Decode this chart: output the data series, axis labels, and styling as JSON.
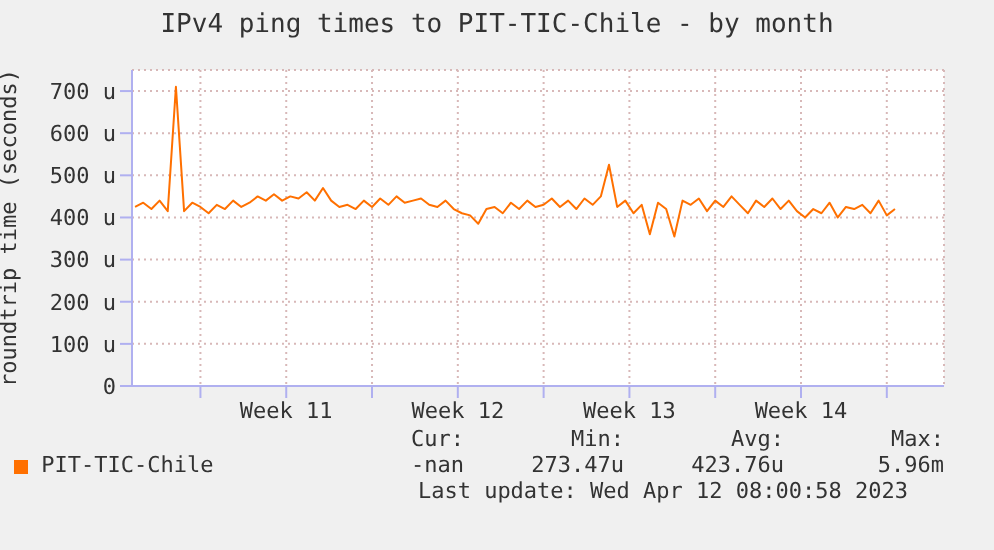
{
  "chart_data": {
    "type": "line",
    "title": "IPv4 ping times to PIT-TIC-Chile - by month",
    "ylabel": "roundtrip time (seconds)",
    "xlim": [
      "2023-03-10T05:00",
      "2023-04-12T08:00"
    ],
    "xticks": [
      {
        "value": "2023-03-13T00:00",
        "label": null
      },
      {
        "value": "2023-03-16T12:00",
        "label": "Week 11"
      },
      {
        "value": "2023-03-20T00:00",
        "label": null
      },
      {
        "value": "2023-03-23T12:00",
        "label": "Week 12"
      },
      {
        "value": "2023-03-27T00:00",
        "label": null
      },
      {
        "value": "2023-03-30T12:00",
        "label": "Week 13"
      },
      {
        "value": "2023-04-03T00:00",
        "label": null
      },
      {
        "value": "2023-04-06T12:00",
        "label": "Week 14"
      },
      {
        "value": "2023-04-10T00:00",
        "label": null
      }
    ],
    "ylim": [
      0,
      750
    ],
    "yticks": [
      0,
      {
        "value": 100,
        "label": "100 u"
      },
      {
        "value": 200,
        "label": "200 u"
      },
      {
        "value": 300,
        "label": "300 u"
      },
      {
        "value": 400,
        "label": "400 u"
      },
      {
        "value": 500,
        "label": "500 u"
      },
      {
        "value": 600,
        "label": "600 u"
      },
      {
        "value": 700,
        "label": "700 u"
      }
    ],
    "grid": true,
    "legend": "bottom left",
    "marker": "none",
    "line_style": "solid",
    "annotations": [
      "Cur:",
      "Min:",
      "Avg:",
      "Max:",
      "-nan",
      "273.47u",
      "423.76u",
      "5.96m",
      "Last update: Wed Apr 12 08:00:58 2023"
    ],
    "series": [
      {
        "name": "PIT-TIC-Chile",
        "color": "#ff7000",
        "x": [
          "2023-03-10T08:00",
          "2023-03-10T16:00",
          "2023-03-11T00:00",
          "2023-03-11T08:00",
          "2023-03-11T16:00",
          "2023-03-12T00:00",
          "2023-03-12T08:00",
          "2023-03-12T16:00",
          "2023-03-13T00:00",
          "2023-03-13T08:00",
          "2023-03-13T16:00",
          "2023-03-14T00:00",
          "2023-03-14T08:00",
          "2023-03-14T16:00",
          "2023-03-15T00:00",
          "2023-03-15T08:00",
          "2023-03-15T16:00",
          "2023-03-16T00:00",
          "2023-03-16T08:00",
          "2023-03-16T16:00",
          "2023-03-17T00:00",
          "2023-03-17T08:00",
          "2023-03-17T16:00",
          "2023-03-18T00:00",
          "2023-03-18T08:00",
          "2023-03-18T16:00",
          "2023-03-19T00:00",
          "2023-03-19T08:00",
          "2023-03-19T16:00",
          "2023-03-20T00:00",
          "2023-03-20T08:00",
          "2023-03-20T16:00",
          "2023-03-21T00:00",
          "2023-03-21T08:00",
          "2023-03-21T16:00",
          "2023-03-22T00:00",
          "2023-03-22T08:00",
          "2023-03-22T16:00",
          "2023-03-23T00:00",
          "2023-03-23T08:00",
          "2023-03-23T16:00",
          "2023-03-24T00:00",
          "2023-03-24T08:00",
          "2023-03-24T16:00",
          "2023-03-25T00:00",
          "2023-03-25T08:00",
          "2023-03-25T16:00",
          "2023-03-26T00:00",
          "2023-03-26T08:00",
          "2023-03-26T16:00",
          "2023-03-27T00:00",
          "2023-03-27T08:00",
          "2023-03-27T16:00",
          "2023-03-28T00:00",
          "2023-03-28T08:00",
          "2023-03-28T16:00",
          "2023-03-29T00:00",
          "2023-03-29T08:00",
          "2023-03-29T16:00",
          "2023-03-30T00:00",
          "2023-03-30T08:00",
          "2023-03-30T16:00",
          "2023-03-31T00:00",
          "2023-03-31T08:00",
          "2023-03-31T16:00",
          "2023-04-01T00:00",
          "2023-04-01T08:00",
          "2023-04-01T16:00",
          "2023-04-02T00:00",
          "2023-04-02T08:00",
          "2023-04-02T16:00",
          "2023-04-03T00:00",
          "2023-04-03T08:00",
          "2023-04-03T16:00",
          "2023-04-04T00:00",
          "2023-04-04T08:00",
          "2023-04-04T16:00",
          "2023-04-05T00:00",
          "2023-04-05T08:00",
          "2023-04-05T16:00",
          "2023-04-06T00:00",
          "2023-04-06T08:00",
          "2023-04-06T16:00",
          "2023-04-07T00:00",
          "2023-04-07T08:00",
          "2023-04-07T16:00",
          "2023-04-08T00:00",
          "2023-04-08T08:00",
          "2023-04-08T16:00",
          "2023-04-09T00:00",
          "2023-04-09T08:00",
          "2023-04-09T16:00",
          "2023-04-10T00:00",
          "2023-04-10T08:00"
        ],
        "values": [
          425,
          435,
          420,
          440,
          415,
          710,
          415,
          435,
          425,
          410,
          430,
          420,
          440,
          425,
          435,
          450,
          440,
          455,
          440,
          450,
          445,
          460,
          440,
          470,
          440,
          425,
          430,
          420,
          440,
          425,
          445,
          430,
          450,
          435,
          440,
          445,
          430,
          425,
          440,
          420,
          410,
          405,
          385,
          420,
          425,
          410,
          435,
          420,
          440,
          425,
          430,
          445,
          425,
          440,
          420,
          445,
          430,
          450,
          525,
          425,
          440,
          410,
          430,
          360,
          435,
          420,
          355,
          440,
          430,
          445,
          415,
          440,
          425,
          450,
          430,
          410,
          440,
          425,
          445,
          420,
          440,
          415,
          400,
          420,
          410,
          435,
          400,
          425,
          420,
          430,
          410,
          440,
          405,
          420
        ]
      }
    ]
  }
}
